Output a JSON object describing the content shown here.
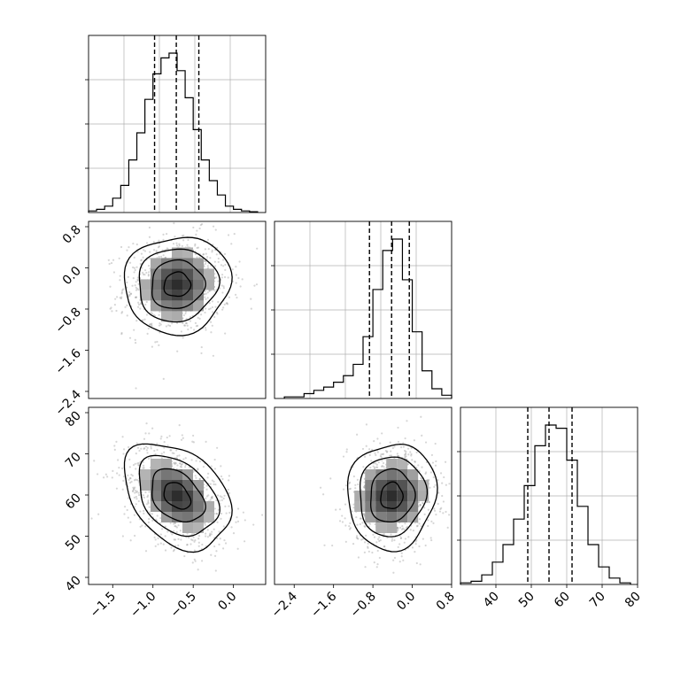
{
  "chart_data": [
    {
      "type": "histogram",
      "panel": "param-1-marginal",
      "bins": [
        -1.8,
        -1.7,
        -1.6,
        -1.5,
        -1.4,
        -1.3,
        -1.2,
        -1.1,
        -1.0,
        -0.9,
        -0.8,
        -0.7,
        -0.6,
        -0.5,
        -0.4,
        -0.3,
        -0.2,
        -0.1,
        0.0,
        0.1,
        0.2,
        0.3
      ],
      "heights": [
        0.01,
        0.02,
        0.04,
        0.09,
        0.17,
        0.33,
        0.5,
        0.71,
        0.87,
        0.97,
        1.0,
        0.89,
        0.72,
        0.52,
        0.33,
        0.2,
        0.11,
        0.04,
        0.02,
        0.01,
        0.005
      ],
      "quantiles": [
        -0.98,
        -0.71,
        -0.43
      ],
      "xlim": [
        -1.8,
        0.4
      ],
      "grid": true
    },
    {
      "type": "histogram",
      "panel": "param-2-marginal",
      "bins": [
        -2.6,
        -2.4,
        -2.2,
        -2.0,
        -1.8,
        -1.6,
        -1.4,
        -1.2,
        -1.0,
        -0.8,
        -0.6,
        -0.4,
        -0.2,
        0.0,
        0.2,
        0.4,
        0.6,
        0.8
      ],
      "heights": [
        0.01,
        0.01,
        0.03,
        0.05,
        0.07,
        0.1,
        0.14,
        0.21,
        0.38,
        0.67,
        0.91,
        0.98,
        0.73,
        0.41,
        0.17,
        0.06,
        0.02
      ],
      "quantiles": [
        -0.87,
        -0.42,
        -0.06
      ],
      "xlim": [
        -2.8,
        0.8
      ],
      "grid": true
    },
    {
      "type": "histogram",
      "panel": "param-3-marginal",
      "bins": [
        30,
        33,
        36,
        39,
        42,
        45,
        48,
        51,
        54,
        57,
        60,
        63,
        66,
        69,
        72,
        75,
        78
      ],
      "heights": [
        0.01,
        0.02,
        0.06,
        0.14,
        0.25,
        0.41,
        0.62,
        0.87,
        1.0,
        0.98,
        0.78,
        0.49,
        0.25,
        0.11,
        0.04,
        0.01
      ],
      "quantiles": [
        49,
        55,
        61.5
      ],
      "xlim": [
        30,
        80
      ],
      "grid": true
    },
    {
      "type": "scatter_density",
      "panel": "param-1-vs-param-2",
      "center": [
        -0.7,
        -0.35
      ],
      "spread": [
        0.33,
        0.48
      ],
      "corr": 0.05,
      "contour_levels": 4,
      "xlim": [
        -1.8,
        0.4
      ],
      "ylim": [
        -2.6,
        0.9
      ],
      "yticks": [
        "0.8",
        "0.0",
        "−0.8",
        "−1.6",
        "−2.4"
      ]
    },
    {
      "type": "scatter_density",
      "panel": "param-1-vs-param-3",
      "center": [
        -0.7,
        55
      ],
      "spread": [
        0.33,
        7.5
      ],
      "corr": -0.35,
      "contour_levels": 4,
      "xlim": [
        -1.8,
        0.4
      ],
      "ylim": [
        30,
        80
      ],
      "yticks": [
        "80",
        "70",
        "60",
        "50",
        "40"
      ],
      "xticks": [
        "−1.5",
        "−1.0",
        "−0.5",
        "0.0"
      ]
    },
    {
      "type": "scatter_density",
      "panel": "param-2-vs-param-3",
      "center": [
        -0.42,
        55
      ],
      "spread": [
        0.45,
        7.5
      ],
      "corr": 0.05,
      "contour_levels": 4,
      "xlim": [
        -2.8,
        0.8
      ],
      "ylim": [
        30,
        80
      ],
      "xticks": [
        "−2.4",
        "−1.6",
        "−0.8",
        "0.0",
        "0.8"
      ]
    },
    {
      "type": "axis_labels",
      "panel": "param-3-marginal-xticks",
      "xticks": [
        "40",
        "50",
        "60",
        "70",
        "80"
      ]
    }
  ]
}
